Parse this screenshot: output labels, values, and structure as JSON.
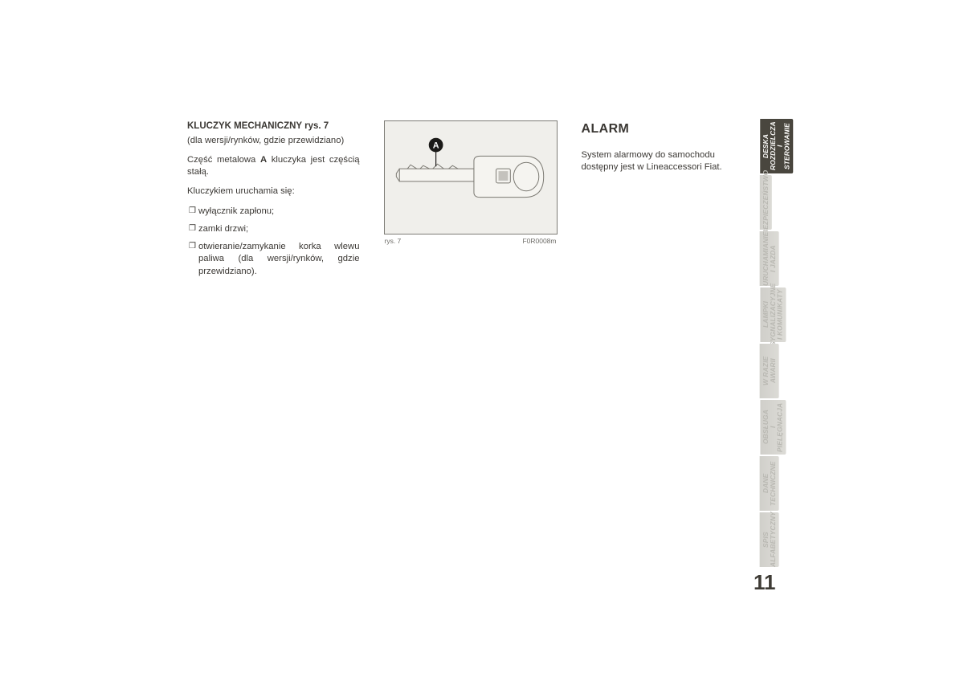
{
  "leftCol": {
    "heading": "KLUCZYK MECHANICZNY rys. 7",
    "subheading": "(dla wersji/rynków, gdzie przewidziano)",
    "p1_before": "Część metalowa ",
    "p1_bold": "A",
    "p1_after": " kluczyka jest częścią stałą.",
    "p2": "Kluczykiem uruchamia się:",
    "items": [
      "wyłącznik zapłonu;",
      "zamki drzwi;",
      "otwieranie/zamykanie korka wlewu paliwa (dla wersji/rynków, gdzie przewidziano)."
    ],
    "figCaptionLeft": "rys. 7",
    "figCaptionRight": "F0R0008m",
    "figLabel": "A"
  },
  "rightCol": {
    "title": "ALARM",
    "body": "System alarmowy do samochodu dostępny jest w Lineaccessori Fiat."
  },
  "tabs": [
    {
      "label": "DESKA\nROZDZIELCZA\nI STEROWANIE",
      "active": true
    },
    {
      "label": "BEZPIECZEŃSTWO",
      "active": false
    },
    {
      "label": "URUCHAMIANIE\nI JAZDA",
      "active": false
    },
    {
      "label": "LAMPKI\nSYGNALIZACYJNE\nI KOMUNIKATY",
      "active": false
    },
    {
      "label": "W RAZIE\nAWARII",
      "active": false
    },
    {
      "label": "OBSŁUGA\nI PIELĘGNACJA",
      "active": false
    },
    {
      "label": "DANE\nTECHNICZNE",
      "active": false
    },
    {
      "label": "SPIS\nALFABETYCZNY",
      "active": false
    }
  ],
  "pageNumber": "11",
  "colors": {
    "text": "#3b3834",
    "tabActiveBg": "#49463e",
    "tabActiveFg": "#fdfcfa",
    "tabInactiveFg": "#b9b8b2",
    "figBg": "#f0efeb",
    "figBorder": "#7d7c76"
  }
}
